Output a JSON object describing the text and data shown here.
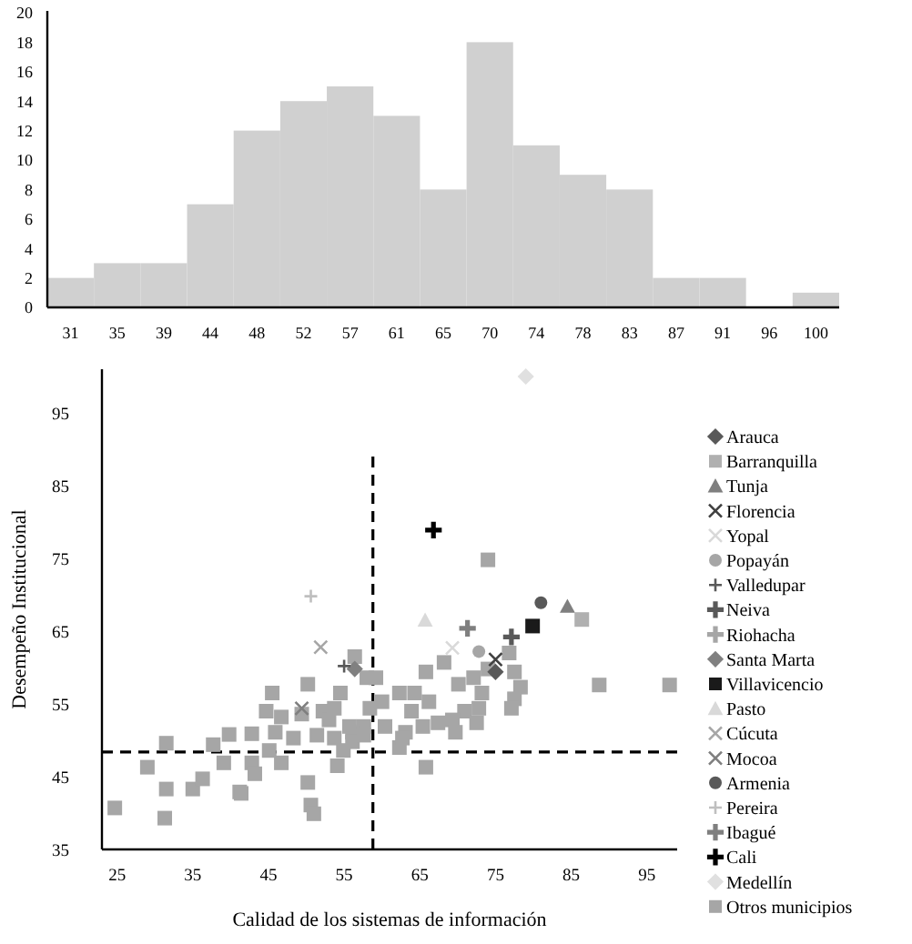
{
  "chart_data": [
    {
      "type": "bar",
      "categories": [
        "31",
        "35",
        "39",
        "44",
        "48",
        "52",
        "57",
        "61",
        "65",
        "70",
        "74",
        "78",
        "83",
        "87",
        "91",
        "96",
        "100"
      ],
      "values": [
        2,
        3,
        3,
        7,
        12,
        14,
        15,
        13,
        8,
        18,
        11,
        9,
        8,
        2,
        2,
        0,
        1
      ],
      "color": "#d0d0d0",
      "ylim": [
        0,
        20
      ],
      "yticks": [
        0,
        2,
        4,
        6,
        8,
        10,
        12,
        14,
        16,
        18,
        20
      ],
      "grid": false
    },
    {
      "type": "scatter",
      "xlabel": "Calidad de los sistemas de información",
      "ylabel": "Desempeño Institucional",
      "xlim": [
        23,
        99
      ],
      "ylim": [
        35,
        101
      ],
      "xticks": [
        25,
        35,
        45,
        55,
        65,
        75,
        85,
        95
      ],
      "yticks": [
        35,
        45,
        55,
        65,
        75,
        85,
        95
      ],
      "grid": false,
      "legend": "right",
      "ref_lines": [
        {
          "axis": "y",
          "value": 48.4,
          "color": "#000000",
          "line_style": "dashed"
        },
        {
          "axis": "x",
          "value": 58.8,
          "color": "#000000",
          "line_style": "dashed"
        }
      ],
      "series": [
        {
          "name": "Arauca",
          "color": "#595959",
          "marker": "diamond",
          "x": [
            75
          ],
          "values": [
            59.4
          ]
        },
        {
          "name": "Barranquilla",
          "color": "#b0b0b0",
          "marker": "square",
          "x": [
            86.4
          ],
          "values": [
            66.6
          ]
        },
        {
          "name": "Tunja",
          "color": "#7f7f7f",
          "marker": "triangle",
          "x": [
            84.5
          ],
          "values": [
            68.4
          ]
        },
        {
          "name": "Florencia",
          "color": "#404040",
          "marker": "cross",
          "x": [
            75
          ],
          "values": [
            61.1
          ]
        },
        {
          "name": "Yopal",
          "color": "#d9d9d9",
          "marker": "cross",
          "x": [
            69.3
          ],
          "values": [
            62.7
          ]
        },
        {
          "name": "Popayán",
          "color": "#a6a6a6",
          "marker": "circle",
          "x": [
            72.8
          ],
          "values": [
            62.2
          ]
        },
        {
          "name": "Valledupar",
          "color": "#595959",
          "marker": "plus",
          "x": [
            55
          ],
          "values": [
            60.2
          ]
        },
        {
          "name": "Neiva",
          "color": "#595959",
          "x": [
            77.1
          ],
          "values": [
            64.2
          ]
        },
        {
          "name": "Riohacha",
          "color": "#a6a6a6"
        },
        {
          "name": "Santa Marta",
          "color": "#808080",
          "marker": "diamond",
          "x": [
            56.4
          ],
          "values": [
            59.8
          ]
        },
        {
          "name": "Villavicencio",
          "color": "#1a1a1a",
          "marker": "square",
          "x": [
            79.9
          ],
          "values": [
            65.7
          ]
        },
        {
          "name": "Pasto",
          "color": "#d9d9d9",
          "marker": "triangle",
          "x": [
            65.7
          ],
          "values": [
            66.5
          ]
        },
        {
          "name": "Cúcuta",
          "color": "#a6a6a6",
          "marker": "cross",
          "x": [
            51.9
          ],
          "values": [
            62.8
          ]
        },
        {
          "name": "Mocoa",
          "color": "#7f7f7f",
          "marker": "cross",
          "x": [
            49.4
          ],
          "values": [
            54.4
          ]
        },
        {
          "name": "Armenia",
          "color": "#595959",
          "marker": "circle",
          "x": [
            81
          ],
          "values": [
            68.9
          ]
        },
        {
          "name": "Pereira",
          "color": "#bfbfbf",
          "marker": "plus",
          "x": [
            50.6
          ],
          "values": [
            69.8
          ]
        },
        {
          "name": "Ibagué",
          "color": "#7f7f7f",
          "x": [
            71.3
          ],
          "values": [
            65.4
          ]
        },
        {
          "name": "Cali",
          "color": "#000000",
          "x": [
            66.8
          ],
          "values": [
            78.9
          ]
        },
        {
          "name": "Medellín",
          "color": "#e0e0e0",
          "marker": "diamond",
          "x": [
            79
          ],
          "values": [
            100
          ]
        },
        {
          "name": "Otros municipios",
          "color": "#a6a6a6",
          "marker": "square",
          "x": [
            24.7,
            29,
            31.3,
            31.5,
            31.5,
            35,
            36.3,
            37.7,
            39.1,
            41.2,
            41.4,
            39.8,
            42.8,
            42.8,
            43.2,
            45.5,
            44.7,
            46.7,
            45.1,
            46.7,
            45.9,
            48.3,
            50.2,
            50.2,
            50.6,
            51,
            49.4,
            52.2,
            53,
            53.7,
            54.5,
            51.4,
            53.7,
            54.1,
            54.9,
            56.4,
            57.6,
            58,
            56.1,
            58.4,
            59.2,
            60,
            62.3,
            64.3,
            63.9,
            66.2,
            65.8,
            68.2,
            70.1,
            72.1,
            73.2,
            74,
            72.8,
            70.9,
            69.3,
            67.4,
            65.4,
            65.8,
            63.1,
            62.3,
            62.7,
            60.4,
            55.7,
            56.1,
            57.6,
            76.8,
            77.5,
            78.3,
            77.5,
            77.1,
            72.5,
            69.7,
            88.7,
            98,
            74
          ],
          "values": [
            40.7,
            46.3,
            39.3,
            43.3,
            49.6,
            43.3,
            44.7,
            49.4,
            46.9,
            42.9,
            42.7,
            50.8,
            50.9,
            46.9,
            45.4,
            56.5,
            54,
            53.2,
            48.6,
            46.9,
            51.1,
            50.3,
            57.7,
            44.2,
            41.1,
            39.9,
            53.6,
            54,
            52.8,
            54.4,
            56.5,
            50.7,
            50.3,
            46.5,
            48.6,
            61.5,
            51.9,
            58.6,
            51.1,
            54.4,
            58.6,
            55.3,
            56.5,
            56.5,
            54,
            55.3,
            59.4,
            60.7,
            57.7,
            58.6,
            56.5,
            59.8,
            54.4,
            54,
            52.8,
            52.4,
            51.9,
            46.3,
            51.1,
            49,
            50.3,
            51.9,
            51.9,
            49.8,
            50.7,
            62,
            59.4,
            57.3,
            55.7,
            54.4,
            52.4,
            51.1,
            57.6,
            57.6,
            74.8
          ]
        }
      ]
    }
  ]
}
